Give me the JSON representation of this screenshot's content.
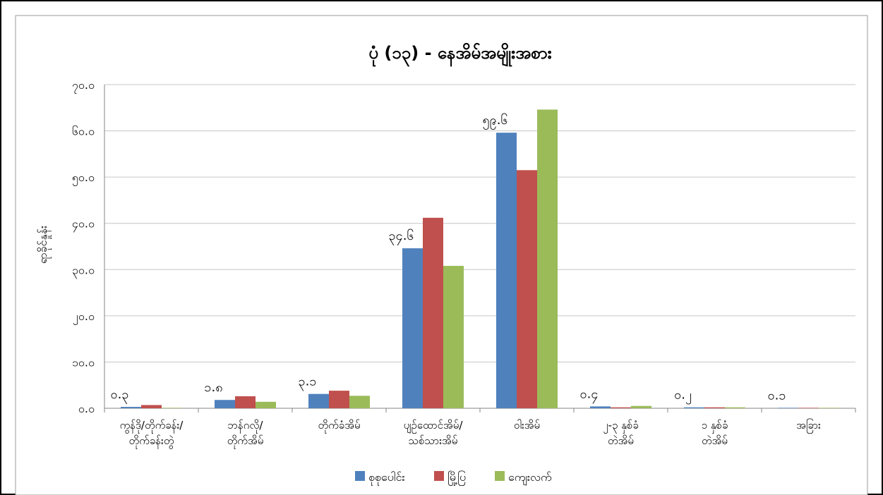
{
  "chart_data": {
    "type": "bar",
    "title": "ပုံ (၁၃) - နေအိမ်အမျိုးအစား",
    "ylabel": "ရာခိုင်နှုန်း",
    "xlabel": "",
    "ylim": [
      0,
      70
    ],
    "y_ticks": [
      "၀.၀",
      "၁၀.၀",
      "၂၀.၀",
      "၃၀.၀",
      "၄၀.၀",
      "၅၀.၀",
      "၆၀.၀",
      "၇၀.၀"
    ],
    "grid": true,
    "legend_position": "bottom",
    "categories": [
      [
        "ကွန်ဒို/တိုက်ခန်း/",
        "တိုက်ခန်းတွဲ"
      ],
      [
        "ဘန်ဂလို/",
        "တိုက်အိမ်"
      ],
      [
        "တိုက်ခံအိမ်"
      ],
      [
        "ပျဉ်ထောင်အိမ်/",
        "သစ်သားအိမ်"
      ],
      [
        "ဝါးအိမ်"
      ],
      [
        "၂-၃ နှစ်ခံ",
        "တဲအိမ်"
      ],
      [
        "၁ နှစ်ခံ",
        "တဲအိမ်"
      ],
      [
        "အခြား"
      ]
    ],
    "series": [
      {
        "name": "စုစုပေါင်း",
        "color": "#4F81BD",
        "values": [
          0.3,
          1.8,
          3.1,
          34.6,
          59.6,
          0.4,
          0.2,
          0.1
        ]
      },
      {
        "name": "မြို့ပြ",
        "color": "#C0504D",
        "values": [
          0.7,
          2.6,
          3.8,
          41.2,
          51.5,
          0.2,
          0.2,
          0.1
        ]
      },
      {
        "name": "ကျေးလက်",
        "color": "#9BBB59",
        "values": [
          0.1,
          1.4,
          2.7,
          30.8,
          64.6,
          0.5,
          0.2,
          0.1
        ]
      }
    ],
    "data_labels": [
      "၀.၃",
      "၁.၈",
      "၃.၁",
      "၃၄.၆",
      "၅၉.၆",
      "၀.၄",
      "၀.၂",
      "၀.၁"
    ]
  }
}
